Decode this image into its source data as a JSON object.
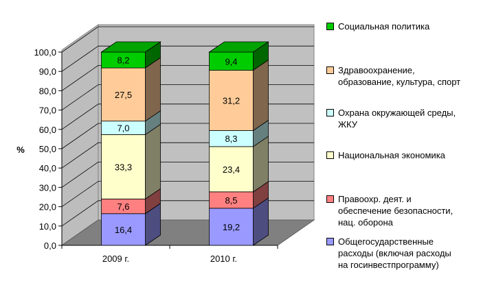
{
  "chart_data": {
    "type": "bar",
    "stacked": true,
    "three_d": true,
    "categories": [
      "2009 г.",
      "2010 г."
    ],
    "ylabel": "%",
    "ylim": [
      0,
      100
    ],
    "yticks": [
      "0,0",
      "10,0",
      "20,0",
      "30,0",
      "40,0",
      "50,0",
      "60,0",
      "70,0",
      "80,0",
      "90,0",
      "100,0"
    ],
    "grid": false,
    "legend_position": "right",
    "series": [
      {
        "name": "Общегосударственные расходы (включая расходы на госинвестпрограмму)",
        "values": [
          16.4,
          19.2
        ],
        "labels": [
          "16,4",
          "19,2"
        ],
        "color": "#9999ff"
      },
      {
        "name": "Правоохр. деят. и обеспечение безопасности, нац. оборона",
        "values": [
          7.6,
          8.5
        ],
        "labels": [
          "7,6",
          "8,5"
        ],
        "color": "#ff8080"
      },
      {
        "name": "Национальная экономика",
        "values": [
          33.3,
          23.4
        ],
        "labels": [
          "33,3",
          "23,4"
        ],
        "color": "#ffffcc"
      },
      {
        "name": "Охрана окружающей среды, ЖКУ",
        "values": [
          7.0,
          8.3
        ],
        "labels": [
          "7,0",
          "8,3"
        ],
        "color": "#ccffff"
      },
      {
        "name": "Здравоохранение, образование, культура, спорт",
        "values": [
          27.5,
          31.2
        ],
        "labels": [
          "27,5",
          "31,2"
        ],
        "color": "#ffcc99"
      },
      {
        "name": "Социальная политика",
        "values": [
          8.2,
          9.4
        ],
        "labels": [
          "8,2",
          "9,4"
        ],
        "color": "#00cc00"
      }
    ]
  },
  "legend": {
    "items": [
      {
        "label": "Социальная политика",
        "color": "#00cc00"
      },
      {
        "label": "Здравоохранение,\nобразование, культура, спорт",
        "color": "#ffcc99"
      },
      {
        "label": "Охрана окружающей среды,\nЖКУ",
        "color": "#ccffff"
      },
      {
        "label": "Национальная экономика",
        "color": "#ffffcc"
      },
      {
        "label": "Правоохр. деят. и\nобеспечение безопасности,\nнац. оборона",
        "color": "#ff8080"
      },
      {
        "label": "Общегосударственные\nрасходы (включая расходы\nна госинвестпрограмму)",
        "color": "#9999ff"
      }
    ]
  }
}
